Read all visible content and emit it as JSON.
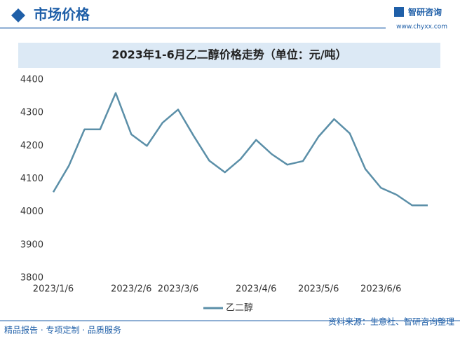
{
  "header": {
    "title": "市场价格",
    "brand": "智研咨询",
    "url": "www.chyxx.com"
  },
  "chart_data": {
    "type": "line",
    "title": "2023年1-6月乙二醇价格走势（单位：元/吨）",
    "categories": [
      "2023/1/6",
      null,
      null,
      null,
      null,
      "2023/2/6",
      null,
      null,
      "2023/3/6",
      null,
      null,
      null,
      null,
      "2023/4/6",
      null,
      null,
      null,
      "2023/5/6",
      null,
      null,
      null,
      "2023/6/6",
      null,
      null,
      null
    ],
    "series": [
      {
        "name": "乙二醇",
        "color": "#5b8fa8",
        "values": [
          4060,
          4140,
          4250,
          4250,
          4360,
          4235,
          4200,
          4270,
          4310,
          4230,
          4155,
          4120,
          4160,
          4218,
          4175,
          4143,
          4154,
          4228,
          4281,
          4238,
          4130,
          4073,
          4052,
          4020,
          4020
        ]
      }
    ],
    "ylim": [
      3800,
      4400
    ],
    "yticks": [
      3800,
      3900,
      4000,
      4100,
      4200,
      4300,
      4400
    ],
    "grid": false,
    "legend": "bottom"
  },
  "footer": {
    "left": "精品报告 · 专项定制 · 品质服务",
    "right": "资料来源：生意社、智研咨询整理"
  }
}
